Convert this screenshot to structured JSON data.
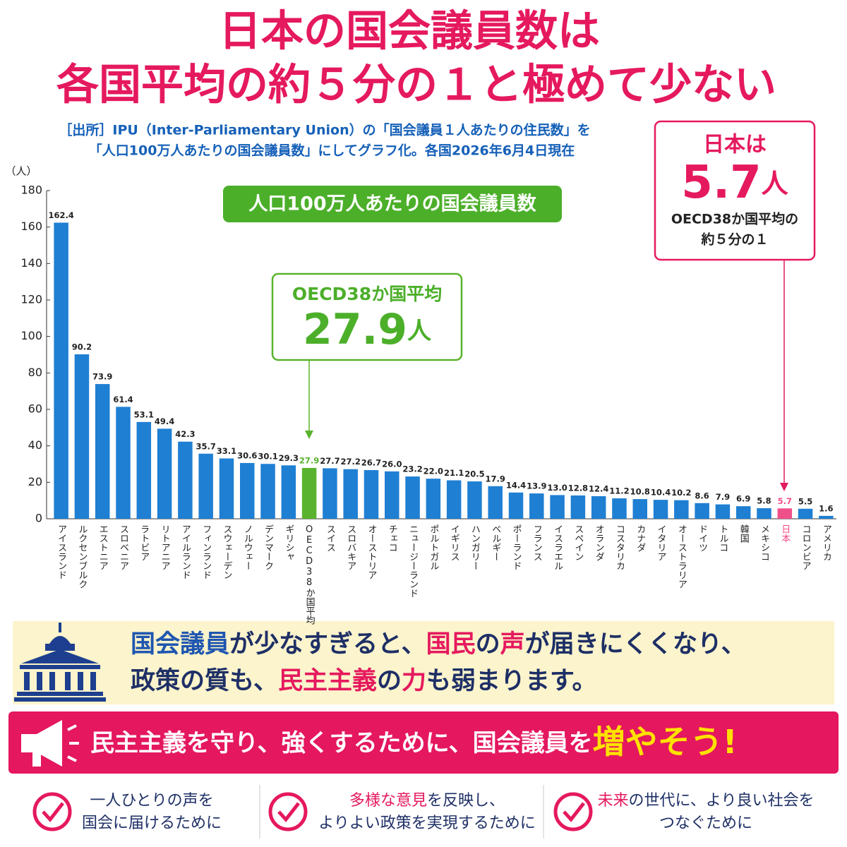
{
  "header": {
    "title": [
      "日本の国会議員数は",
      "各国平均の約５分の１と極めて少ない"
    ],
    "source": [
      "［出所］IPU（Inter-Parliamentary Union）の「国会議員１人あたりの住民数」を",
      "「人口100万人あたりの国会議員数」にしてグラフ化。各国2026年6月4日現在"
    ]
  },
  "chart_data": {
    "type": "bar",
    "subtitle": "人口100万人あたりの国会議員数",
    "y_unit": "（人）",
    "categories": [
      "アイスランド",
      "ルクセンブルク",
      "エストニア",
      "スロベニア",
      "ラトビア",
      "リトアニア",
      "アイルランド",
      "フィンランド",
      "スウェーデン",
      "ノルウェー",
      "デンマーク",
      "ギリシャ",
      "OECD38か国平均",
      "スイス",
      "スロバキア",
      "オーストリア",
      "チェコ",
      "ニュージーランド",
      "ポルトガル",
      "イギリス",
      "ハンガリー",
      "ベルギー",
      "ポーランド",
      "フランス",
      "イスラエル",
      "スペイン",
      "オランダ",
      "コスタリカ",
      "カナダ",
      "イタリア",
      "オーストラリア",
      "ドイツ",
      "トルコ",
      "韓国",
      "メキシコ",
      "日本",
      "コロンビア",
      "アメリカ"
    ],
    "values": [
      162.4,
      90.2,
      73.9,
      61.4,
      53.1,
      49.4,
      42.3,
      35.7,
      33.1,
      30.6,
      30.1,
      29.3,
      27.9,
      27.7,
      27.2,
      26.7,
      26.0,
      23.2,
      22.0,
      21.1,
      20.5,
      17.9,
      14.4,
      13.9,
      13.0,
      12.8,
      12.4,
      11.2,
      10.8,
      10.4,
      10.2,
      8.6,
      7.9,
      6.9,
      5.8,
      5.7,
      5.5,
      1.6
    ],
    "value_labels": [
      "162.4",
      "90.2",
      "73.9",
      "61.4",
      "53.1",
      "49.4",
      "42.3",
      "35.7",
      "33.1",
      "30.6",
      "30.1",
      "29.3",
      "27.9",
      "27.7",
      "27.2",
      "26.7",
      "26.0",
      "23.2",
      "22.0",
      "21.1",
      "20.5",
      "17.9",
      "14.4",
      "13.9",
      "13.0",
      "12.8",
      "12.4",
      "11.2",
      "10.8",
      "10.4",
      "10.2",
      "8.6",
      "7.9",
      "6.9",
      "5.8",
      "5.7",
      "5.5",
      "1.6"
    ],
    "color": "#1f7fd3",
    "colors": [
      "#1f7fd3",
      "#1f7fd3",
      "#1f7fd3",
      "#1f7fd3",
      "#1f7fd3",
      "#1f7fd3",
      "#1f7fd3",
      "#1f7fd3",
      "#1f7fd3",
      "#1f7fd3",
      "#1f7fd3",
      "#1f7fd3",
      "#5ab32e",
      "#1f7fd3",
      "#1f7fd3",
      "#1f7fd3",
      "#1f7fd3",
      "#1f7fd3",
      "#1f7fd3",
      "#1f7fd3",
      "#1f7fd3",
      "#1f7fd3",
      "#1f7fd3",
      "#1f7fd3",
      "#1f7fd3",
      "#1f7fd3",
      "#1f7fd3",
      "#1f7fd3",
      "#1f7fd3",
      "#1f7fd3",
      "#1f7fd3",
      "#1f7fd3",
      "#1f7fd3",
      "#1f7fd3",
      "#1f7fd3",
      "#f0508a",
      "#1f7fd3",
      "#1f7fd3"
    ],
    "ylim": [
      0,
      180
    ],
    "yticks": [
      0,
      20,
      40,
      60,
      80,
      100,
      120,
      140,
      160,
      180
    ],
    "grid": false,
    "callouts": [
      {
        "title": "OECD38か国平均",
        "value": "27.9",
        "unit": "人"
      },
      {
        "title": "日本は",
        "value": "5.7",
        "unit": "人",
        "lines": [
          "OECD38か国平均の",
          "約５分の１"
        ]
      }
    ]
  },
  "message": {
    "lines": [
      [
        {
          "text": "国会議員",
          "color": "#1f56b0"
        },
        {
          "text": "が少なすぎると、",
          "color": "#1e2f66"
        },
        {
          "text": "国民",
          "color": "#e5195e"
        },
        {
          "text": "の",
          "color": "#1e2f66"
        },
        {
          "text": "声",
          "color": "#e5195e"
        },
        {
          "text": "が届きにくくなり、",
          "color": "#1e2f66"
        }
      ],
      [
        {
          "text": "政策の質も、",
          "color": "#1e2f66"
        },
        {
          "text": "民主主義",
          "color": "#e5195e"
        },
        {
          "text": "の",
          "color": "#1e2f66"
        },
        {
          "text": "力",
          "color": "#e5195e"
        },
        {
          "text": "も弱まります。",
          "color": "#1e2f66"
        }
      ]
    ]
  },
  "banner": {
    "text": "民主主義を守り、強くするために、国会議員を",
    "emphasis": "増やそう!"
  },
  "reasons": [
    [
      [
        {
          "text": "一人ひとりの声を",
          "color": "#1e2f66"
        }
      ],
      [
        {
          "text": "国会に届けるために",
          "color": "#1e2f66"
        }
      ]
    ],
    [
      [
        {
          "text": "多様な意見",
          "color": "#e5195e"
        },
        {
          "text": "を反映し、",
          "color": "#1e2f66"
        }
      ],
      [
        {
          "text": "よりよい政策を実現するために",
          "color": "#1e2f66"
        }
      ]
    ],
    [
      [
        {
          "text": "未来",
          "color": "#e5195e"
        },
        {
          "text": "の世代に、より良い社会を",
          "color": "#1e2f66"
        }
      ],
      [
        {
          "text": "つなぐために",
          "color": "#1e2f66"
        }
      ]
    ]
  ]
}
